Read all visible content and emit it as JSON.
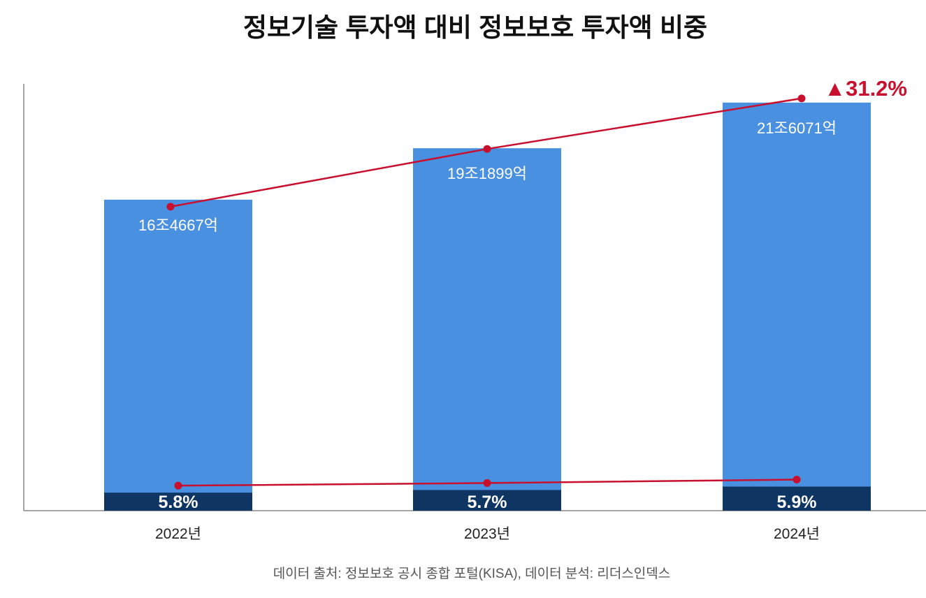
{
  "chart_data": {
    "type": "bar",
    "title": "정보기술 투자액 대비 정보보호 투자액 비중",
    "source": "데이터 출처: 정보보호 공시 종합 포털(KISA), 데이터 분석: 리더스인덱스",
    "categories": [
      "2022년",
      "2023년",
      "2024년"
    ],
    "series": [
      {
        "values": [
          164667,
          191899,
          216071
        ],
        "labels": [
          "16조4667억",
          "19조1899억",
          "21조6071억"
        ],
        "unit": "억",
        "color": "#4a90e0"
      },
      {
        "values": [
          5.8,
          5.7,
          5.9
        ],
        "labels": [
          "5.8%",
          "5.7%",
          "5.9%"
        ],
        "unit": "%",
        "color": "#0f3563"
      }
    ],
    "trend_line_color": "#c8102e",
    "growth_annotation": "▲31.2%",
    "ylim": [
      0,
      226000
    ],
    "grid": false,
    "legend": "none"
  }
}
